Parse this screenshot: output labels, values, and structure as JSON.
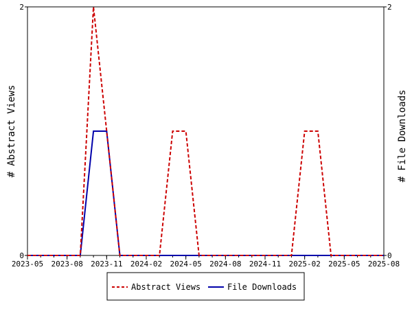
{
  "chart_data": {
    "type": "line",
    "xlabel": "",
    "ylabel_left": "# Abstract Views",
    "ylabel_right": "# File Downloads",
    "x_ticks": [
      "2023-05",
      "2023-08",
      "2023-11",
      "2024-02",
      "2024-05",
      "2024-08",
      "2024-11",
      "2025-02",
      "2025-05",
      "2025-08"
    ],
    "xlim": [
      "2023-05",
      "2025-08"
    ],
    "ylim_left": [
      0,
      2
    ],
    "ylim_right": [
      0,
      2
    ],
    "y_ticks_left": [
      "0",
      "2"
    ],
    "y_ticks_right": [
      "0",
      "2"
    ],
    "grid": false,
    "legend_position": "bottom",
    "series": [
      {
        "name": "Abstract Views",
        "color": "#cc0000",
        "style": "dashed",
        "axis": "left",
        "points": [
          [
            "2023-05",
            0
          ],
          [
            "2023-09",
            0
          ],
          [
            "2023-10",
            2
          ],
          [
            "2023-11",
            1
          ],
          [
            "2023-12",
            0
          ],
          [
            "2024-03",
            0
          ],
          [
            "2024-04",
            1
          ],
          [
            "2024-05",
            1
          ],
          [
            "2024-06",
            0
          ],
          [
            "2025-01",
            0
          ],
          [
            "2025-02",
            1
          ],
          [
            "2025-03",
            1
          ],
          [
            "2025-04",
            0
          ],
          [
            "2025-08",
            0
          ]
        ]
      },
      {
        "name": "File Downloads",
        "color": "#0000aa",
        "style": "solid",
        "axis": "right",
        "points": [
          [
            "2023-05",
            0
          ],
          [
            "2023-09",
            0
          ],
          [
            "2023-10",
            1
          ],
          [
            "2023-11",
            1
          ],
          [
            "2023-12",
            0
          ],
          [
            "2025-08",
            0
          ]
        ]
      }
    ]
  }
}
